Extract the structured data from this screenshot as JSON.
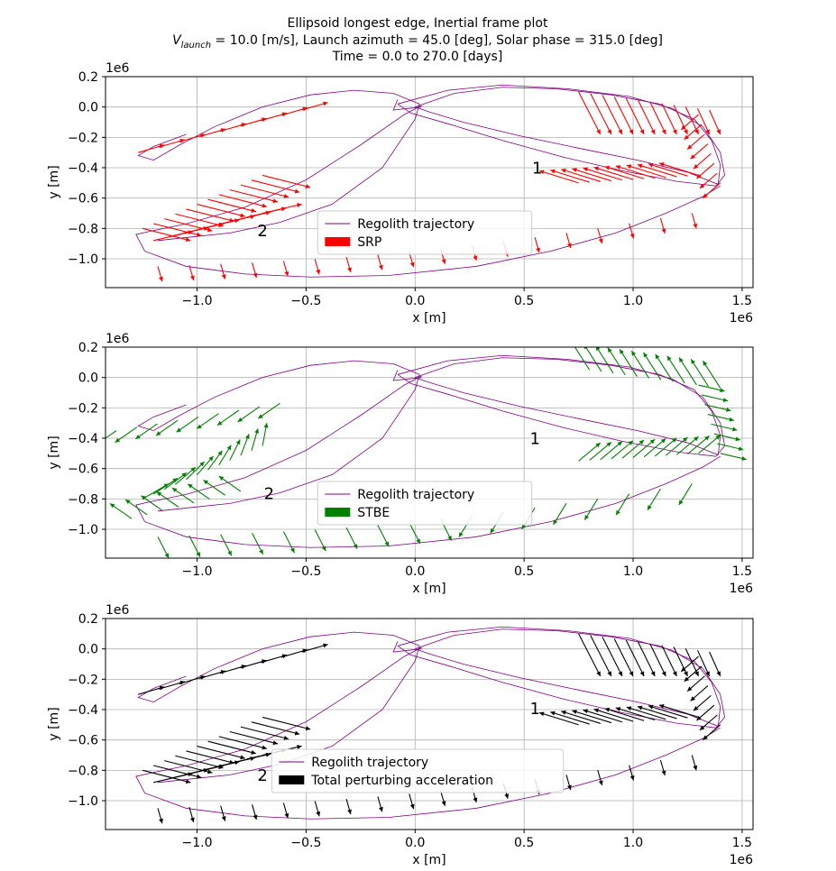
{
  "figure": {
    "title_line1": "Ellipsoid longest edge, Inertial frame plot",
    "title_line2_prefix": "V",
    "title_line2_sub": "launch",
    "title_line2_rest": " = 10.0 [m/s], Launch azimuth = 45.0 [deg], Solar phase = 315.0 [deg]",
    "title_line3": "Time = 0.0 to 270.0 [days]"
  },
  "chart_data": [
    {
      "type": "line",
      "xlabel": "x [m]",
      "ylabel": "y [m]",
      "x_offset_label": "1e6",
      "y_offset_label": "1e6",
      "xlim": [
        -1.42,
        1.55
      ],
      "ylim": [
        -1.19,
        0.2
      ],
      "xticks": [
        -1.0,
        -0.5,
        0.0,
        0.5,
        1.0,
        1.5
      ],
      "xtick_labels": [
        "−1.0",
        "−0.5",
        "0.0",
        "0.5",
        "1.0",
        "1.5"
      ],
      "yticks": [
        0.2,
        0.0,
        -0.2,
        -0.4,
        -0.6,
        -0.8,
        -1.0
      ],
      "ytick_labels": [
        "0.2",
        "0.0",
        "−0.2",
        "−0.4",
        "−0.6",
        "−0.8",
        "−1.0"
      ],
      "grid": true,
      "legend_position": "lower-center",
      "series": [
        {
          "name": "Regolith trajectory",
          "kind": "line",
          "color": "#800080"
        },
        {
          "name": "SRP",
          "kind": "quiver",
          "color": "#ff0000"
        }
      ],
      "annotations": [
        {
          "text": "1",
          "x": 0.56,
          "y": -0.44
        },
        {
          "text": "2",
          "x": -0.7,
          "y": -0.85
        }
      ]
    },
    {
      "type": "line",
      "xlabel": "x [m]",
      "ylabel": "y [m]",
      "x_offset_label": "1e6",
      "y_offset_label": "1e6",
      "xlim": [
        -1.42,
        1.55
      ],
      "ylim": [
        -1.19,
        0.2
      ],
      "xticks": [
        -1.0,
        -0.5,
        0.0,
        0.5,
        1.0,
        1.5
      ],
      "xtick_labels": [
        "−1.0",
        "−0.5",
        "0.0",
        "0.5",
        "1.0",
        "1.5"
      ],
      "yticks": [
        0.2,
        0.0,
        -0.2,
        -0.4,
        -0.6,
        -0.8,
        -1.0
      ],
      "ytick_labels": [
        "0.2",
        "0.0",
        "−0.2",
        "−0.4",
        "−0.6",
        "−0.8",
        "−1.0"
      ],
      "grid": true,
      "legend_position": "lower-center",
      "series": [
        {
          "name": "Regolith trajectory",
          "kind": "line",
          "color": "#800080"
        },
        {
          "name": "STBE",
          "kind": "quiver",
          "color": "#008000"
        }
      ],
      "annotations": [
        {
          "text": "1",
          "x": 0.55,
          "y": -0.44
        },
        {
          "text": "2",
          "x": -0.67,
          "y": -0.8
        }
      ]
    },
    {
      "type": "line",
      "xlabel": "x [m]",
      "ylabel": "y [m]",
      "x_offset_label": "1e6",
      "y_offset_label": "1e6",
      "xlim": [
        -1.42,
        1.55
      ],
      "ylim": [
        -1.19,
        0.2
      ],
      "xticks": [
        -1.0,
        -0.5,
        0.0,
        0.5,
        1.0,
        1.5
      ],
      "xtick_labels": [
        "−1.0",
        "−0.5",
        "0.0",
        "0.5",
        "1.0",
        "1.5"
      ],
      "yticks": [
        0.2,
        0.0,
        -0.2,
        -0.4,
        -0.6,
        -0.8,
        -1.0
      ],
      "ytick_labels": [
        "0.2",
        "0.0",
        "−0.2",
        "−0.4",
        "−0.6",
        "−0.8",
        "−1.0"
      ],
      "grid": true,
      "legend_position": "lower-center",
      "series": [
        {
          "name": "Regolith trajectory",
          "kind": "line",
          "color": "#800080"
        },
        {
          "name": "Total perturbing acceleration",
          "kind": "quiver",
          "color": "#000000"
        }
      ],
      "annotations": [
        {
          "text": "1",
          "x": 0.55,
          "y": -0.43
        },
        {
          "text": "2",
          "x": -0.7,
          "y": -0.87
        }
      ]
    }
  ]
}
